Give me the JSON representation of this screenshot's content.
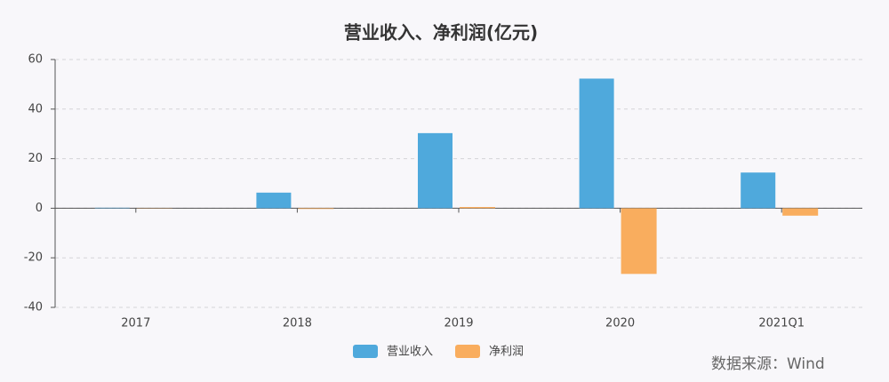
{
  "chart_data": {
    "type": "bar",
    "title": "营业收入、净利润(亿元)",
    "categories": [
      "2017",
      "2018",
      "2019",
      "2020",
      "2021Q1"
    ],
    "series": [
      {
        "name": "营业收入",
        "color": "#4fa9dc",
        "values": [
          0.2,
          6.3,
          30.3,
          52.3,
          14.4
        ]
      },
      {
        "name": "净利润",
        "color": "#f9ad5e",
        "values": [
          -0.1,
          -0.3,
          0.5,
          -26.5,
          -3.0
        ]
      }
    ],
    "ylim": [
      -40,
      60
    ],
    "yticks": [
      -40,
      -20,
      0,
      20,
      40,
      60
    ],
    "grid": true,
    "legend": "bottom",
    "annotation": "数据来源：Wind"
  }
}
